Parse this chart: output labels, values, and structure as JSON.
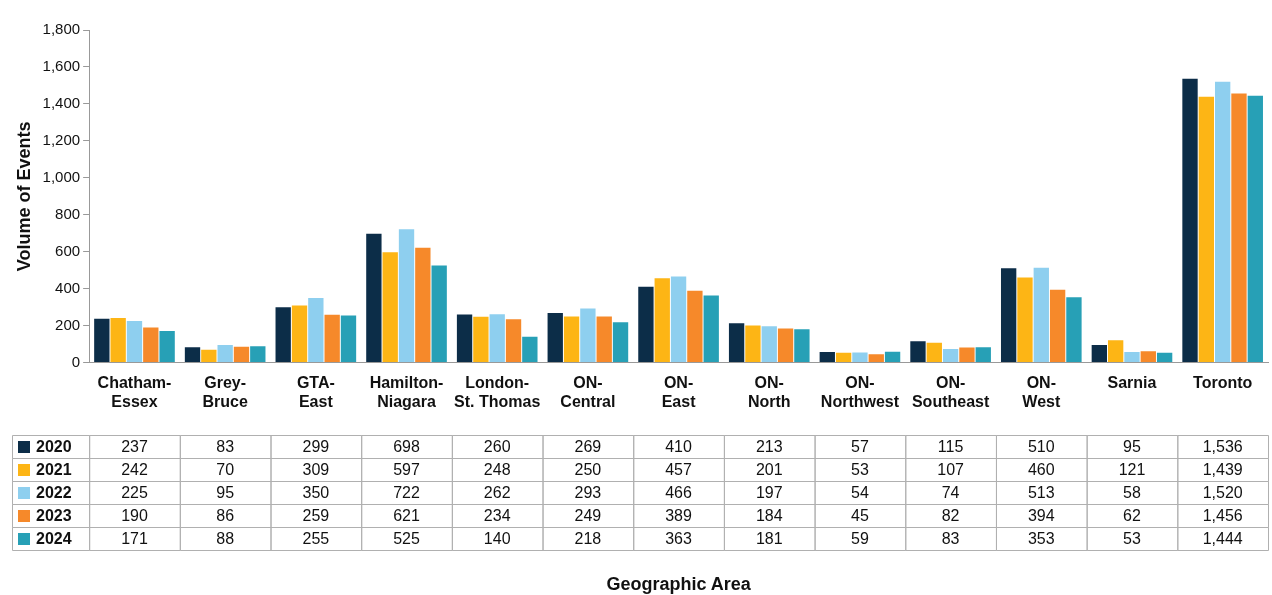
{
  "chart_data": {
    "type": "bar",
    "ylabel": "Volume of Events",
    "annotations": [
      "Geographic Area"
    ],
    "categories": [
      "Chatham-Essex",
      "Grey-Bruce",
      "GTA-East",
      "Hamilton-Niagara",
      "London-St. Thomas",
      "ON-Central",
      "ON-East",
      "ON-North",
      "ON-Northwest",
      "ON-Southeast",
      "ON-West",
      "Sarnia",
      "Toronto"
    ],
    "series": [
      {
        "name": "2020",
        "color": "#0c2d48",
        "values": [
          237,
          83,
          299,
          698,
          260,
          269,
          410,
          213,
          57,
          115,
          510,
          95,
          1536
        ],
        "value_labels": [
          "237",
          "83",
          "299",
          "698",
          "260",
          "269",
          "410",
          "213",
          "57",
          "115",
          "510",
          "95",
          "1,536"
        ]
      },
      {
        "name": "2021",
        "color": "#fdb515",
        "values": [
          242,
          70,
          309,
          597,
          248,
          250,
          457,
          201,
          53,
          107,
          460,
          121,
          1439
        ],
        "value_labels": [
          "242",
          "70",
          "309",
          "597",
          "248",
          "250",
          "457",
          "201",
          "53",
          "107",
          "460",
          "121",
          "1,439"
        ]
      },
      {
        "name": "2022",
        "color": "#8ecfef",
        "values": [
          225,
          95,
          350,
          722,
          262,
          293,
          466,
          197,
          54,
          74,
          513,
          58,
          1520
        ],
        "value_labels": [
          "225",
          "95",
          "350",
          "722",
          "262",
          "293",
          "466",
          "197",
          "54",
          "74",
          "513",
          "58",
          "1,520"
        ]
      },
      {
        "name": "2023",
        "color": "#f6892a",
        "values": [
          190,
          86,
          259,
          621,
          234,
          249,
          389,
          184,
          45,
          82,
          394,
          62,
          1456
        ],
        "value_labels": [
          "190",
          "86",
          "259",
          "621",
          "234",
          "249",
          "389",
          "184",
          "45",
          "82",
          "394",
          "62",
          "1,456"
        ]
      },
      {
        "name": "2024",
        "color": "#27a0b6",
        "values": [
          171,
          88,
          255,
          525,
          140,
          218,
          363,
          181,
          59,
          83,
          353,
          53,
          1444
        ],
        "value_labels": [
          "171",
          "88",
          "255",
          "525",
          "140",
          "218",
          "363",
          "181",
          "59",
          "83",
          "353",
          "53",
          "1,444"
        ]
      }
    ],
    "ylim": [
      0,
      1800
    ],
    "yticks": [
      0,
      200,
      400,
      600,
      800,
      {
        "value": 1000,
        "label": "1,000"
      },
      {
        "value": 1200,
        "label": "1,200"
      },
      {
        "value": 1400,
        "label": "1,400"
      },
      {
        "value": 1600,
        "label": "1,600"
      },
      {
        "value": 1800,
        "label": "1,800"
      }
    ],
    "grid": false,
    "legend": "bottom"
  }
}
